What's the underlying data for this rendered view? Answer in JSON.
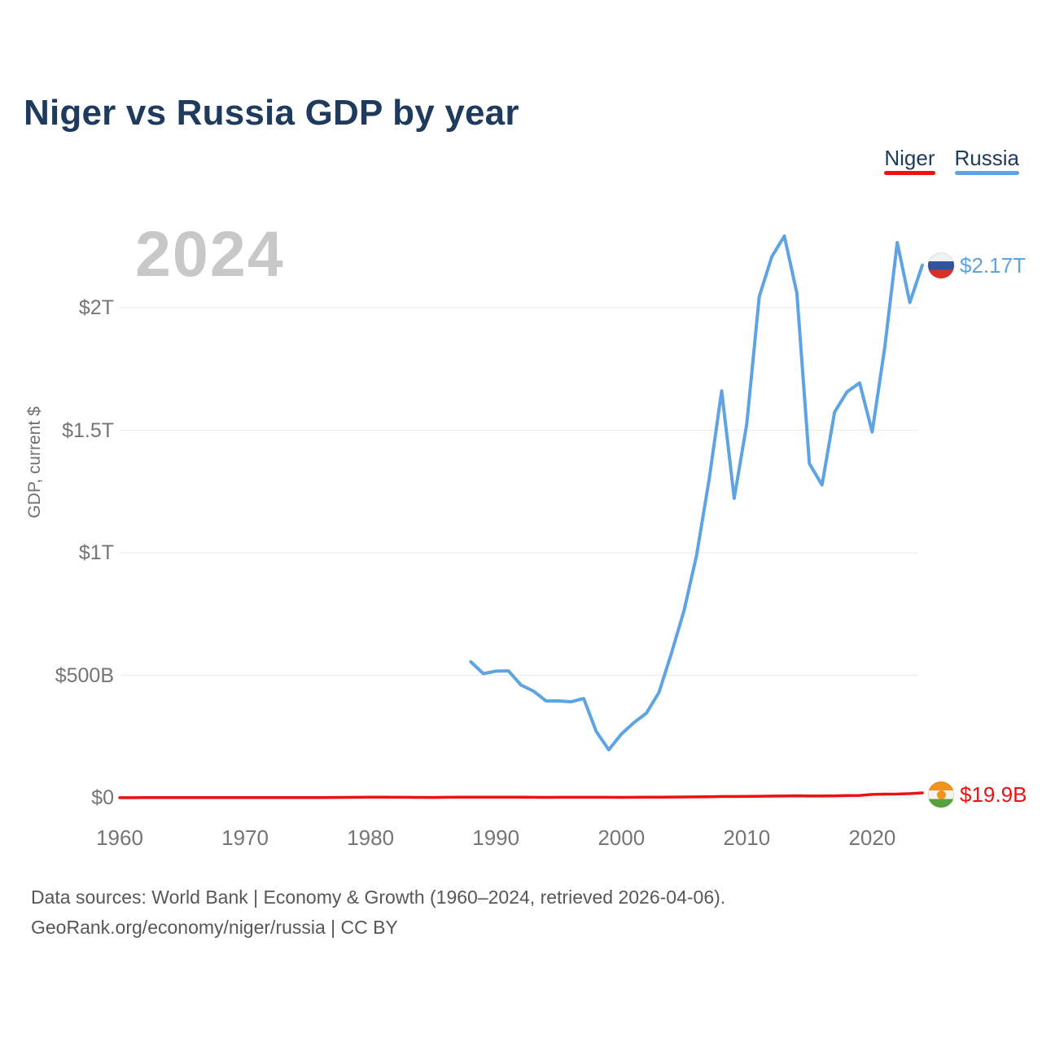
{
  "page": {
    "background": "#ffffff",
    "title_color": "#1e3a5c",
    "tick_color": "#757575"
  },
  "header": {
    "title": "Niger vs Russia GDP by year"
  },
  "legend": {
    "items": [
      {
        "label": "Niger",
        "color": "#ee1111"
      },
      {
        "label": "Russia",
        "color": "#5ea3e2"
      }
    ]
  },
  "watermark": {
    "year": "2024",
    "color": "#c8c8c8"
  },
  "chart_data": {
    "type": "line",
    "title": "Niger vs Russia GDP by year",
    "xlabel": "",
    "ylabel": "GDP, current $",
    "x_range": [
      1960,
      2024
    ],
    "y_range_billions": [
      0,
      2400
    ],
    "grid": "horizontal",
    "gridline_color": "#eaeaea",
    "x_ticks": [
      1960,
      1970,
      1980,
      1990,
      2000,
      2010,
      2020
    ],
    "y_ticks": [
      {
        "value_billions": 0,
        "label": "$0"
      },
      {
        "value_billions": 500,
        "label": "$500B"
      },
      {
        "value_billions": 1000,
        "label": "$1T"
      },
      {
        "value_billions": 1500,
        "label": "$1.5T"
      },
      {
        "value_billions": 2000,
        "label": "$2T"
      }
    ],
    "series": [
      {
        "name": "Russia",
        "color": "#5ea3e2",
        "line_width": 4,
        "end_label": "$2.17T",
        "flag_icon": "russia-flag-icon",
        "flag_colors": {
          "top": "#f2f2f2",
          "middle": "#33549c",
          "bottom": "#da3127"
        },
        "years": [
          1988,
          1989,
          1990,
          1991,
          1992,
          1993,
          1994,
          1995,
          1996,
          1997,
          1998,
          1999,
          2000,
          2001,
          2002,
          2003,
          2004,
          2005,
          2006,
          2007,
          2008,
          2009,
          2010,
          2011,
          2012,
          2013,
          2014,
          2015,
          2016,
          2017,
          2018,
          2019,
          2020,
          2021,
          2022,
          2023,
          2024
        ],
        "values_billions": [
          554.7,
          506.5,
          516.8,
          518.0,
          460.2,
          435.1,
          395.1,
          395.5,
          391.7,
          404.9,
          270.9,
          195.9,
          259.7,
          306.6,
          345.5,
          430.3,
          591.0,
          764.0,
          989.9,
          1299.7,
          1660.8,
          1222.6,
          1524.9,
          2045.9,
          2208.3,
          2292.5,
          2059.2,
          1363.5,
          1276.8,
          1574.2,
          1657.3,
          1693.1,
          1493.1,
          1836.9,
          2266.0,
          2021.4,
          2173.8
        ]
      },
      {
        "name": "Niger",
        "color": "#ee1111",
        "line_width": 3.5,
        "end_label": "$19.9B",
        "flag_icon": "niger-flag-icon",
        "flag_colors": {
          "top": "#f0941d",
          "middle": "#f5f3ea",
          "bottom": "#57a13e",
          "dot": "#f0941d"
        },
        "years": [
          1960,
          1961,
          1962,
          1963,
          1964,
          1965,
          1966,
          1967,
          1968,
          1969,
          1970,
          1971,
          1972,
          1973,
          1974,
          1975,
          1976,
          1977,
          1978,
          1979,
          1980,
          1981,
          1982,
          1983,
          1984,
          1985,
          1986,
          1987,
          1988,
          1989,
          1990,
          1991,
          1992,
          1993,
          1994,
          1995,
          1996,
          1997,
          1998,
          1999,
          2000,
          2001,
          2002,
          2003,
          2004,
          2005,
          2006,
          2007,
          2008,
          2009,
          2010,
          2011,
          2012,
          2013,
          2014,
          2015,
          2016,
          2017,
          2018,
          2019,
          2020,
          2021,
          2022,
          2023,
          2024
        ],
        "values_billions": [
          0.45,
          0.49,
          0.55,
          0.59,
          0.65,
          0.67,
          0.68,
          0.7,
          0.72,
          0.7,
          0.65,
          0.7,
          0.76,
          0.84,
          1.02,
          1.01,
          1.09,
          1.35,
          1.69,
          2.03,
          2.51,
          2.28,
          2.14,
          1.9,
          1.66,
          1.44,
          1.9,
          2.25,
          2.32,
          2.21,
          2.48,
          2.33,
          2.35,
          1.98,
          1.56,
          1.88,
          1.98,
          1.85,
          2.08,
          2.02,
          1.8,
          1.94,
          2.17,
          2.73,
          3.05,
          3.41,
          3.66,
          4.29,
          5.4,
          5.4,
          5.72,
          6.41,
          6.94,
          7.28,
          8.28,
          7.23,
          7.53,
          8.12,
          9.46,
          9.66,
          13.74,
          14.92,
          15.42,
          16.82,
          19.91
        ]
      }
    ]
  },
  "footer": {
    "line1": "Data sources: World Bank | Economy & Growth (1960–2024, retrieved 2026-04-06).",
    "line2": "GeoRank.org/economy/niger/russia | CC BY"
  }
}
